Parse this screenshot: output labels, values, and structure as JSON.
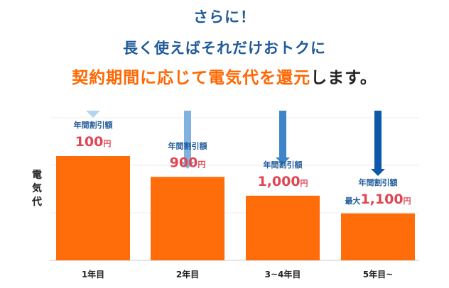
{
  "headings": {
    "line1": "さらに！",
    "line2": "長く使えばそれだけおトクに",
    "line3_accent": "契約期間に応じて電気代を還元",
    "line3_rest": "します。"
  },
  "chart_data": {
    "type": "bar",
    "ylabel": "電気代",
    "categories": [
      "1年目",
      "2年目",
      "3~4年目",
      "5年目~"
    ],
    "values": [
      100,
      80,
      62,
      45
    ],
    "value_note": "relative bar height (percent of first bar)",
    "annotation_title": "年間割引額",
    "discounts": [
      {
        "prefix": "",
        "amount": "100",
        "unit": "円"
      },
      {
        "prefix": "",
        "amount": "900",
        "unit": "円"
      },
      {
        "prefix": "",
        "amount": "1,000",
        "unit": "円"
      },
      {
        "prefix": "最大",
        "amount": "1,100",
        "unit": "円"
      }
    ],
    "grid": true,
    "colors": {
      "bar": "#ff6c0a",
      "discount_number": "#e04652",
      "annotation_text": "#1f5a99",
      "arrows": [
        "#b5d4ee",
        "#7fb2de",
        "#3c85c8",
        "#0d58a8"
      ]
    }
  }
}
